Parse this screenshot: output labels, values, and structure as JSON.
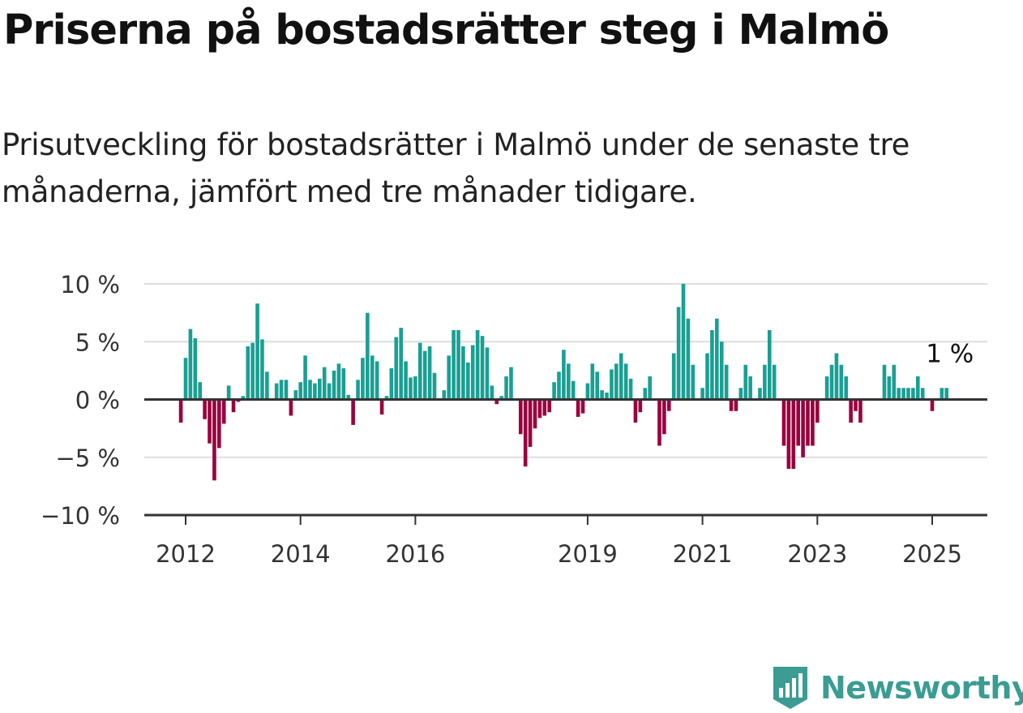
{
  "title": "Priserna på bostadsrätter steg i Malmö",
  "subtitle": "Prisutveckling för bostadsrätter i Malmö under de senaste tre månaderna, jämfört med tre månader tidigare.",
  "brand": "Newsworthy",
  "colors": {
    "positive": "#1a9f93",
    "negative": "#99003f",
    "grid": "#dddddd",
    "axis": "#333333",
    "brand": "#3a9c92"
  },
  "chart_data": {
    "type": "bar",
    "y_unit": "%",
    "ylim": [
      -10,
      10
    ],
    "y_ticks": [
      {
        "value": 10,
        "label": "10 %"
      },
      {
        "value": 5,
        "label": "5 %"
      },
      {
        "value": 0,
        "label": "0 %"
      },
      {
        "value": -5,
        "label": "−5 %"
      },
      {
        "value": -10,
        "label": "−10 %"
      }
    ],
    "x_ticks": [
      {
        "value": "2012-01",
        "label": "2012"
      },
      {
        "value": "2014-01",
        "label": "2014"
      },
      {
        "value": "2016-01",
        "label": "2016"
      },
      {
        "value": "2019-01",
        "label": "2019"
      },
      {
        "value": "2021-01",
        "label": "2021"
      },
      {
        "value": "2023-01",
        "label": "2023"
      },
      {
        "value": "2025-01",
        "label": "2025"
      }
    ],
    "grid": true,
    "annotation": {
      "label": "1 %",
      "x": "2025-04",
      "y": 1
    },
    "series": [
      {
        "values": [
          {
            "x": "2011-12",
            "y": -2.0
          },
          {
            "x": "2012-01",
            "y": 3.6
          },
          {
            "x": "2012-02",
            "y": 6.1
          },
          {
            "x": "2012-03",
            "y": 5.3
          },
          {
            "x": "2012-04",
            "y": 1.5
          },
          {
            "x": "2012-05",
            "y": -1.7
          },
          {
            "x": "2012-06",
            "y": -3.8
          },
          {
            "x": "2012-07",
            "y": -7.0
          },
          {
            "x": "2012-08",
            "y": -4.2
          },
          {
            "x": "2012-09",
            "y": -2.1
          },
          {
            "x": "2012-10",
            "y": 1.2
          },
          {
            "x": "2012-11",
            "y": -1.1
          },
          {
            "x": "2012-12",
            "y": -0.2
          },
          {
            "x": "2013-01",
            "y": 0.3
          },
          {
            "x": "2013-02",
            "y": 4.6
          },
          {
            "x": "2013-03",
            "y": 4.9
          },
          {
            "x": "2013-04",
            "y": 8.3
          },
          {
            "x": "2013-05",
            "y": 5.2
          },
          {
            "x": "2013-06",
            "y": 2.4
          },
          {
            "x": "2013-07",
            "y": 0.1
          },
          {
            "x": "2013-08",
            "y": 1.4
          },
          {
            "x": "2013-09",
            "y": 1.7
          },
          {
            "x": "2013-10",
            "y": 1.7
          },
          {
            "x": "2013-11",
            "y": -1.4
          },
          {
            "x": "2013-12",
            "y": 0.8
          },
          {
            "x": "2014-01",
            "y": 1.5
          },
          {
            "x": "2014-02",
            "y": 3.8
          },
          {
            "x": "2014-03",
            "y": 1.7
          },
          {
            "x": "2014-04",
            "y": 1.4
          },
          {
            "x": "2014-05",
            "y": 1.8
          },
          {
            "x": "2014-06",
            "y": 2.8
          },
          {
            "x": "2014-07",
            "y": 1.4
          },
          {
            "x": "2014-08",
            "y": 2.5
          },
          {
            "x": "2014-09",
            "y": 3.1
          },
          {
            "x": "2014-10",
            "y": 2.7
          },
          {
            "x": "2014-11",
            "y": 0.4
          },
          {
            "x": "2014-12",
            "y": -2.2
          },
          {
            "x": "2015-01",
            "y": 1.7
          },
          {
            "x": "2015-02",
            "y": 3.6
          },
          {
            "x": "2015-03",
            "y": 7.5
          },
          {
            "x": "2015-04",
            "y": 3.8
          },
          {
            "x": "2015-05",
            "y": 3.3
          },
          {
            "x": "2015-06",
            "y": -1.3
          },
          {
            "x": "2015-07",
            "y": 0.3
          },
          {
            "x": "2015-08",
            "y": 2.7
          },
          {
            "x": "2015-09",
            "y": 5.4
          },
          {
            "x": "2015-10",
            "y": 6.2
          },
          {
            "x": "2015-11",
            "y": 3.3
          },
          {
            "x": "2015-12",
            "y": 1.9
          },
          {
            "x": "2016-01",
            "y": 2.0
          },
          {
            "x": "2016-02",
            "y": 4.9
          },
          {
            "x": "2016-03",
            "y": 4.2
          },
          {
            "x": "2016-04",
            "y": 4.6
          },
          {
            "x": "2016-05",
            "y": 2.3
          },
          {
            "x": "2016-06",
            "y": 0.0
          },
          {
            "x": "2016-07",
            "y": 0.8
          },
          {
            "x": "2016-08",
            "y": 3.8
          },
          {
            "x": "2016-09",
            "y": 6.0
          },
          {
            "x": "2016-10",
            "y": 6.0
          },
          {
            "x": "2016-11",
            "y": 4.6
          },
          {
            "x": "2016-12",
            "y": 3.2
          },
          {
            "x": "2017-01",
            "y": 4.7
          },
          {
            "x": "2017-02",
            "y": 6.0
          },
          {
            "x": "2017-03",
            "y": 5.5
          },
          {
            "x": "2017-04",
            "y": 4.5
          },
          {
            "x": "2017-05",
            "y": 1.2
          },
          {
            "x": "2017-06",
            "y": -0.4
          },
          {
            "x": "2017-07",
            "y": 0.3
          },
          {
            "x": "2017-08",
            "y": 2.0
          },
          {
            "x": "2017-09",
            "y": 2.8
          },
          {
            "x": "2017-10",
            "y": 0.0
          },
          {
            "x": "2017-11",
            "y": -3.0
          },
          {
            "x": "2017-12",
            "y": -5.8
          },
          {
            "x": "2018-01",
            "y": -4.1
          },
          {
            "x": "2018-02",
            "y": -2.5
          },
          {
            "x": "2018-03",
            "y": -1.6
          },
          {
            "x": "2018-04",
            "y": -1.4
          },
          {
            "x": "2018-05",
            "y": -1.1
          },
          {
            "x": "2018-06",
            "y": 1.5
          },
          {
            "x": "2018-07",
            "y": 2.4
          },
          {
            "x": "2018-08",
            "y": 4.3
          },
          {
            "x": "2018-09",
            "y": 3.1
          },
          {
            "x": "2018-10",
            "y": 1.6
          },
          {
            "x": "2018-11",
            "y": -1.5
          },
          {
            "x": "2018-12",
            "y": -1.2
          },
          {
            "x": "2019-01",
            "y": 1.4
          },
          {
            "x": "2019-02",
            "y": 3.1
          },
          {
            "x": "2019-03",
            "y": 2.4
          },
          {
            "x": "2019-04",
            "y": 0.8
          },
          {
            "x": "2019-05",
            "y": 0.6
          },
          {
            "x": "2019-06",
            "y": 2.6
          },
          {
            "x": "2019-07",
            "y": 3.1
          },
          {
            "x": "2019-08",
            "y": 4.0
          },
          {
            "x": "2019-09",
            "y": 3.1
          },
          {
            "x": "2019-10",
            "y": 1.8
          },
          {
            "x": "2019-11",
            "y": -2.0
          },
          {
            "x": "2019-12",
            "y": -1.1
          },
          {
            "x": "2020-01",
            "y": 1.0
          },
          {
            "x": "2020-02",
            "y": 2.0
          },
          {
            "x": "2020-03",
            "y": 0.0
          },
          {
            "x": "2020-04",
            "y": -4.0
          },
          {
            "x": "2020-05",
            "y": -3.0
          },
          {
            "x": "2020-06",
            "y": -1.0
          },
          {
            "x": "2020-07",
            "y": 4.0
          },
          {
            "x": "2020-08",
            "y": 8.0
          },
          {
            "x": "2020-09",
            "y": 10.0
          },
          {
            "x": "2020-10",
            "y": 7.0
          },
          {
            "x": "2020-11",
            "y": 3.0
          },
          {
            "x": "2020-12",
            "y": 0.0
          },
          {
            "x": "2021-01",
            "y": 1.0
          },
          {
            "x": "2021-02",
            "y": 4.0
          },
          {
            "x": "2021-03",
            "y": 6.0
          },
          {
            "x": "2021-04",
            "y": 7.0
          },
          {
            "x": "2021-05",
            "y": 5.0
          },
          {
            "x": "2021-06",
            "y": 3.0
          },
          {
            "x": "2021-07",
            "y": -1.0
          },
          {
            "x": "2021-08",
            "y": -1.0
          },
          {
            "x": "2021-09",
            "y": 1.0
          },
          {
            "x": "2021-10",
            "y": 3.0
          },
          {
            "x": "2021-11",
            "y": 2.0
          },
          {
            "x": "2021-12",
            "y": 0.0
          },
          {
            "x": "2022-01",
            "y": 1.0
          },
          {
            "x": "2022-02",
            "y": 3.0
          },
          {
            "x": "2022-03",
            "y": 6.0
          },
          {
            "x": "2022-04",
            "y": 3.0
          },
          {
            "x": "2022-05",
            "y": 0.0
          },
          {
            "x": "2022-06",
            "y": -4.0
          },
          {
            "x": "2022-07",
            "y": -6.0
          },
          {
            "x": "2022-08",
            "y": -6.0
          },
          {
            "x": "2022-09",
            "y": -4.0
          },
          {
            "x": "2022-10",
            "y": -5.0
          },
          {
            "x": "2022-11",
            "y": -4.0
          },
          {
            "x": "2022-12",
            "y": -4.0
          },
          {
            "x": "2023-01",
            "y": -2.0
          },
          {
            "x": "2023-02",
            "y": 0.0
          },
          {
            "x": "2023-03",
            "y": 2.0
          },
          {
            "x": "2023-04",
            "y": 3.0
          },
          {
            "x": "2023-05",
            "y": 4.0
          },
          {
            "x": "2023-06",
            "y": 3.0
          },
          {
            "x": "2023-07",
            "y": 2.0
          },
          {
            "x": "2023-08",
            "y": -2.0
          },
          {
            "x": "2023-09",
            "y": -1.0
          },
          {
            "x": "2023-10",
            "y": -2.0
          },
          {
            "x": "2023-11",
            "y": 0.0
          },
          {
            "x": "2023-12",
            "y": 0.0
          },
          {
            "x": "2024-01",
            "y": 0.0
          },
          {
            "x": "2024-02",
            "y": 0.0
          },
          {
            "x": "2024-03",
            "y": 3.0
          },
          {
            "x": "2024-04",
            "y": 2.0
          },
          {
            "x": "2024-05",
            "y": 3.0
          },
          {
            "x": "2024-06",
            "y": 1.0
          },
          {
            "x": "2024-07",
            "y": 1.0
          },
          {
            "x": "2024-08",
            "y": 1.0
          },
          {
            "x": "2024-09",
            "y": 1.0
          },
          {
            "x": "2024-10",
            "y": 2.0
          },
          {
            "x": "2024-11",
            "y": 1.0
          },
          {
            "x": "2024-12",
            "y": 0.0
          },
          {
            "x": "2025-01",
            "y": -1.0
          },
          {
            "x": "2025-02",
            "y": 0.0
          },
          {
            "x": "2025-03",
            "y": 1.0
          },
          {
            "x": "2025-04",
            "y": 1.0
          }
        ]
      }
    ]
  }
}
